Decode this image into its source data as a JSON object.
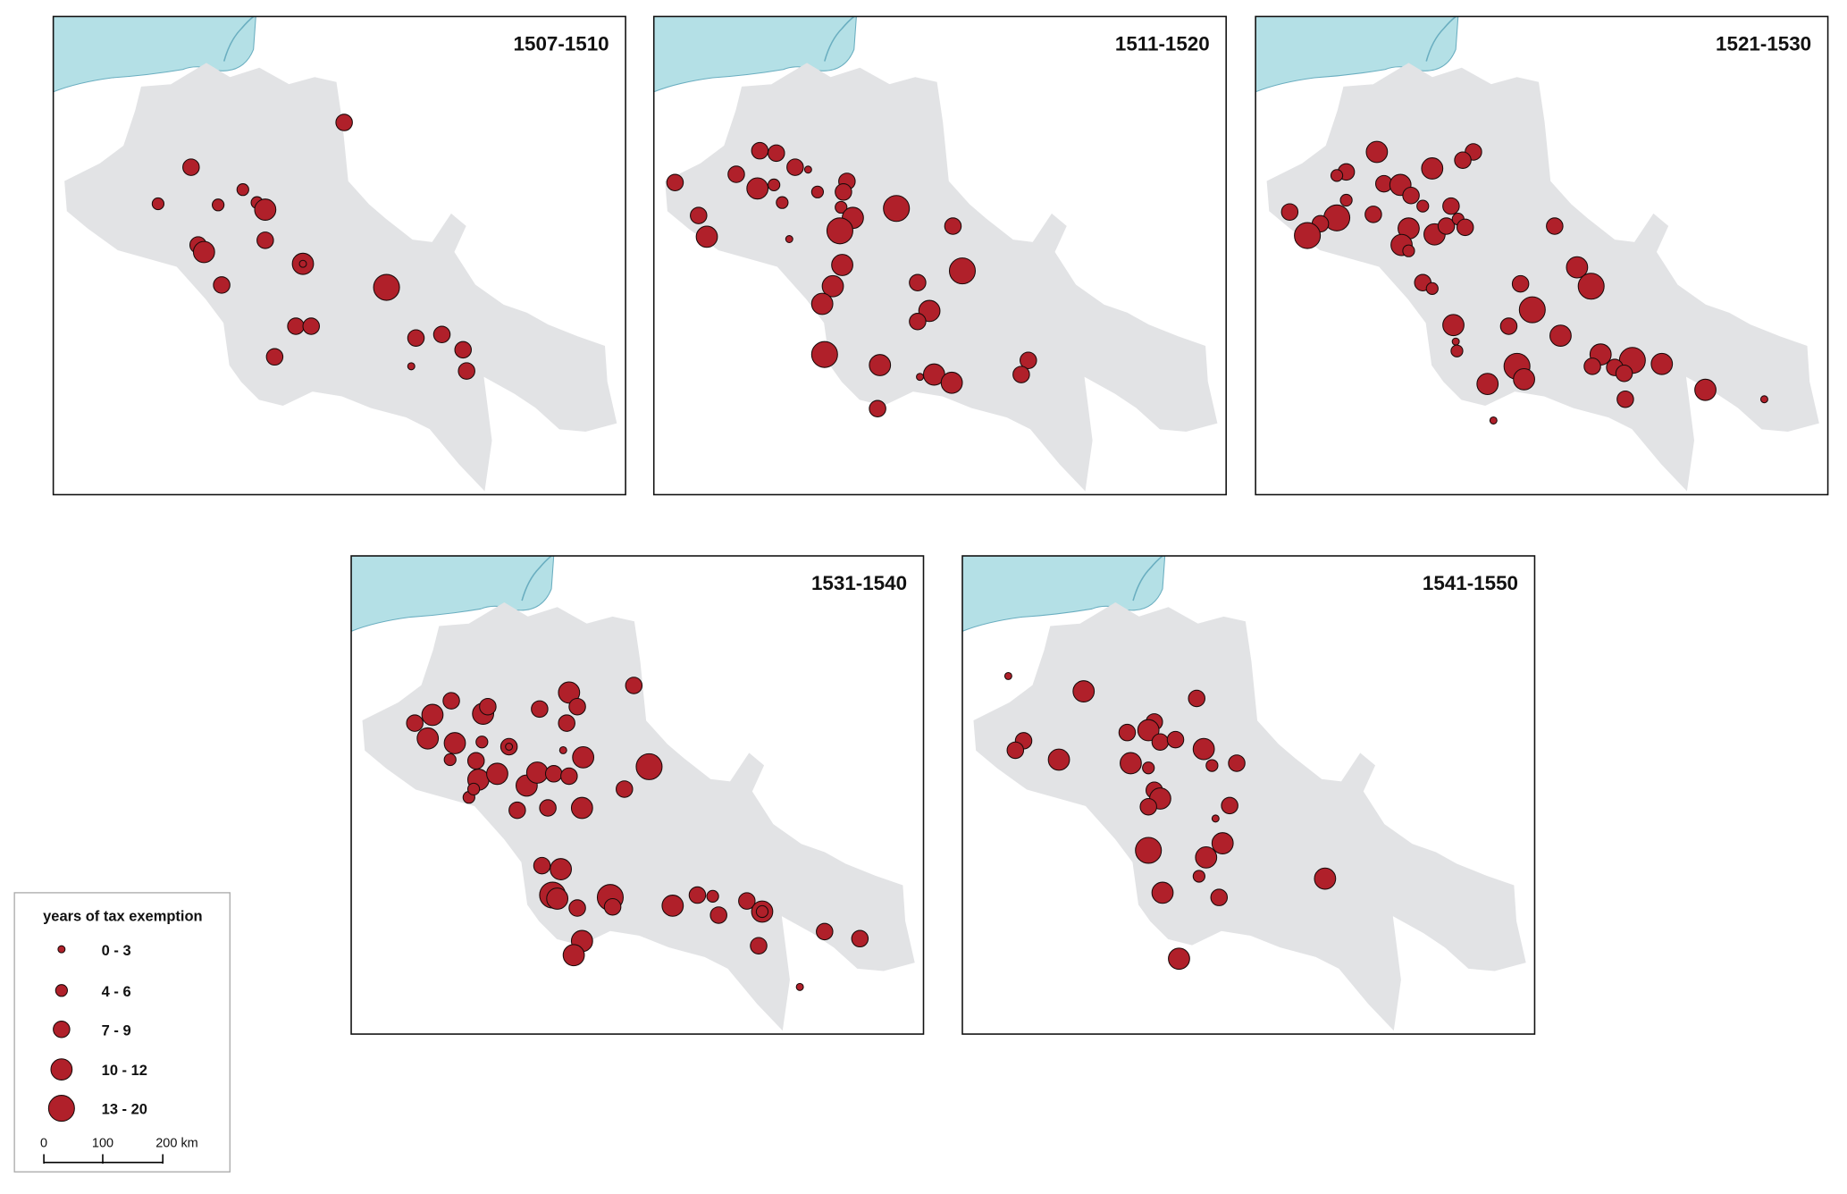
{
  "panels": [
    {
      "title": "1507-1510"
    },
    {
      "title": "1511-1520"
    },
    {
      "title": "1521-1530"
    },
    {
      "title": "1531-1540"
    },
    {
      "title": "1541-1550"
    }
  ],
  "legend": {
    "title": "years of tax exemption",
    "items": [
      "0 - 3",
      "4 - 6",
      "7 - 9",
      "10 - 12",
      "13 - 20"
    ]
  },
  "scale_bar": {
    "labels": [
      "0",
      "100",
      "200 km"
    ]
  }
}
